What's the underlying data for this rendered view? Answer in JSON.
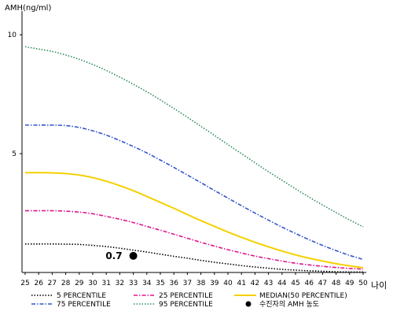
{
  "chart_data": {
    "type": "line",
    "xlabel": "나이",
    "ylabel": "AMH(ng/ml)",
    "x": [
      25,
      26,
      27,
      28,
      29,
      30,
      31,
      32,
      33,
      34,
      35,
      36,
      37,
      38,
      39,
      40,
      41,
      42,
      43,
      44,
      45,
      46,
      47,
      48,
      49,
      50
    ],
    "xlim": [
      25,
      50
    ],
    "ylim": [
      0,
      11
    ],
    "yticks": [
      5,
      10
    ],
    "grid": false,
    "legend_position": "bottom",
    "series": [
      {
        "name": "5 PERCENTILE",
        "color": "#000000",
        "style": "dotted",
        "values": [
          1.2,
          1.2,
          1.2,
          1.19,
          1.18,
          1.14,
          1.09,
          1.02,
          0.94,
          0.86,
          0.77,
          0.68,
          0.6,
          0.51,
          0.43,
          0.36,
          0.29,
          0.23,
          0.18,
          0.13,
          0.1,
          0.07,
          0.05,
          0.03,
          0.02,
          0.02
        ]
      },
      {
        "name": "25 PERCENTILE",
        "color": "#e0148c",
        "style": "dashdot",
        "values": [
          2.6,
          2.6,
          2.6,
          2.58,
          2.54,
          2.47,
          2.36,
          2.24,
          2.1,
          1.94,
          1.78,
          1.61,
          1.44,
          1.27,
          1.11,
          0.96,
          0.82,
          0.69,
          0.58,
          0.48,
          0.39,
          0.32,
          0.26,
          0.21,
          0.17,
          0.14
        ]
      },
      {
        "name": "MEDIAN(50 PERCENTILE)",
        "color": "#f5d000",
        "style": "solid",
        "values": [
          4.2,
          4.2,
          4.19,
          4.16,
          4.1,
          3.99,
          3.84,
          3.65,
          3.44,
          3.2,
          2.95,
          2.7,
          2.44,
          2.18,
          1.94,
          1.7,
          1.48,
          1.27,
          1.08,
          0.9,
          0.74,
          0.6,
          0.48,
          0.37,
          0.28,
          0.2
        ]
      },
      {
        "name": "75 PERCENTILE",
        "color": "#3355cc",
        "style": "dashdot",
        "values": [
          6.2,
          6.2,
          6.2,
          6.18,
          6.1,
          5.96,
          5.78,
          5.55,
          5.3,
          5.03,
          4.73,
          4.42,
          4.1,
          3.78,
          3.45,
          3.13,
          2.81,
          2.5,
          2.2,
          1.91,
          1.64,
          1.38,
          1.14,
          0.92,
          0.72,
          0.55
        ]
      },
      {
        "name": "95 PERCENTILE",
        "color": "#2e8b57",
        "style": "dotted",
        "values": [
          9.5,
          9.4,
          9.3,
          9.15,
          8.97,
          8.75,
          8.5,
          8.22,
          7.92,
          7.6,
          7.26,
          6.9,
          6.53,
          6.15,
          5.77,
          5.38,
          5.0,
          4.62,
          4.24,
          3.88,
          3.52,
          3.17,
          2.84,
          2.52,
          2.21,
          1.92
        ]
      }
    ],
    "points": [
      {
        "name": "수진자의 AMH 농도",
        "x": 33,
        "y": 0.7,
        "label": "0.7",
        "color": "#000000"
      }
    ]
  }
}
